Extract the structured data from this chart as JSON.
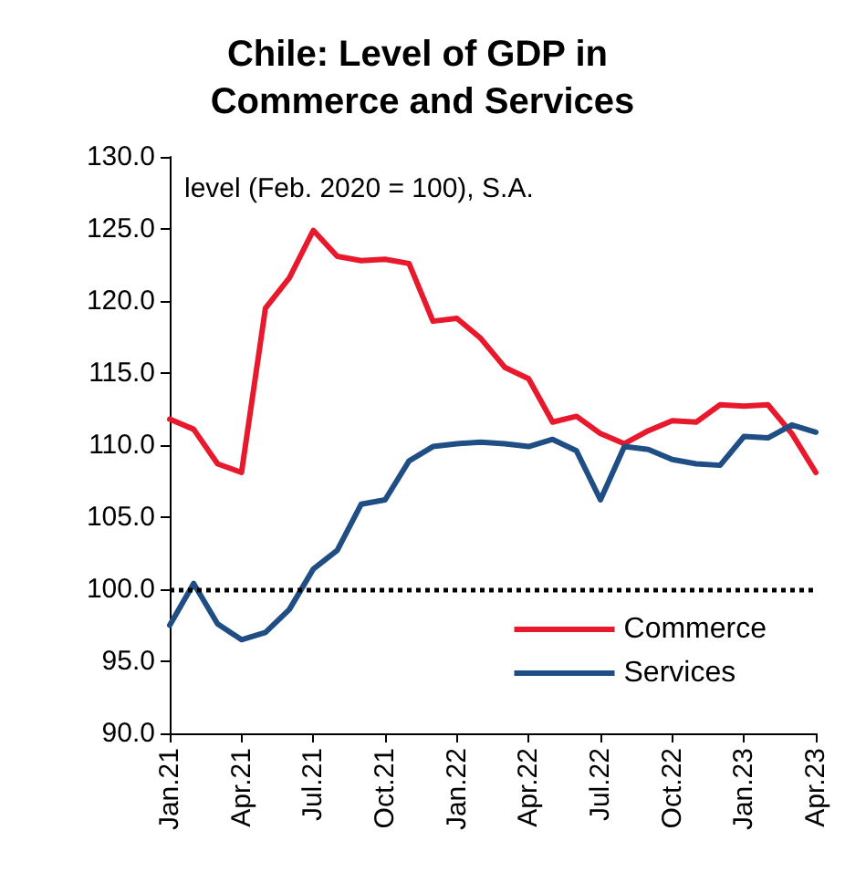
{
  "chart_data": {
    "type": "line",
    "title": "Chile: Level of GDP in Commerce and Services",
    "annotations": [
      "level (Feb. 2020 = 100), S.A."
    ],
    "categories": [
      "Jan.21",
      null,
      null,
      "Apr.21",
      null,
      null,
      "Jul.21",
      null,
      null,
      "Oct.21",
      null,
      null,
      "Jan.22",
      null,
      null,
      "Apr.22",
      null,
      null,
      "Jul.22",
      null,
      null,
      "Oct.22",
      null,
      null,
      "Jan.23",
      null,
      null,
      "Apr.23"
    ],
    "series": [
      {
        "name": "Commerce",
        "color": "#e8192c",
        "values": [
          111.8,
          111.1,
          108.7,
          108.1,
          119.5,
          121.6,
          124.9,
          123.1,
          122.8,
          122.9,
          122.6,
          118.6,
          118.8,
          117.4,
          115.4,
          114.6,
          111.6,
          112.0,
          110.8,
          110.1,
          111.0,
          111.7,
          111.6,
          112.8,
          112.7,
          112.8,
          110.8,
          108.1
        ]
      },
      {
        "name": "Services",
        "color": "#1f4e85",
        "values": [
          97.5,
          100.4,
          97.6,
          96.5,
          97.0,
          98.6,
          101.4,
          102.7,
          105.9,
          106.2,
          108.9,
          109.9,
          110.1,
          110.2,
          110.1,
          109.9,
          110.4,
          109.6,
          106.2,
          109.9,
          109.7,
          109.0,
          108.7,
          108.6,
          110.6,
          110.5,
          111.4,
          110.9
        ]
      }
    ],
    "ylim": [
      90,
      130
    ],
    "yticks": [
      {
        "value": 90,
        "label": "90.0"
      },
      {
        "value": 95,
        "label": "95.0"
      },
      {
        "value": 100,
        "label": "100.0"
      },
      {
        "value": 105,
        "label": "105.0"
      },
      {
        "value": 110,
        "label": "110.0"
      },
      {
        "value": 115,
        "label": "115.0"
      },
      {
        "value": 120,
        "label": "120.0"
      },
      {
        "value": 125,
        "label": "125.0"
      },
      {
        "value": 130,
        "label": "130.0"
      }
    ],
    "ref_lines": [
      {
        "axis": "y",
        "value": 100,
        "color": "#000000",
        "line_style": "dotted"
      }
    ],
    "legend": "bottom right",
    "grid": false,
    "marker": "none",
    "line_style": "solid"
  }
}
